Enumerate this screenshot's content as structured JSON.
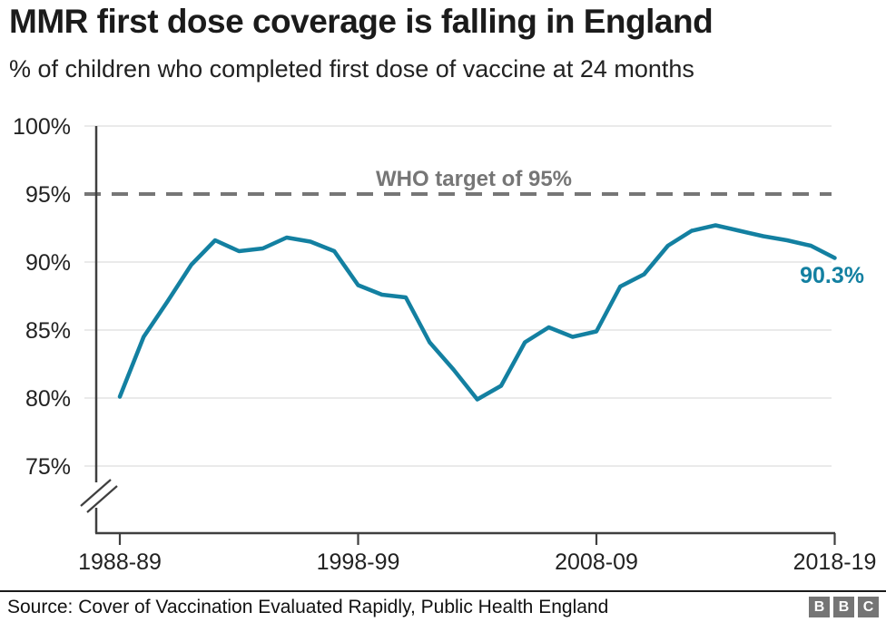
{
  "header": {
    "title": "MMR first dose coverage is falling in England",
    "subtitle": "% of children who completed first dose of vaccine at 24 months"
  },
  "chart_data": {
    "type": "line",
    "title": "MMR first dose coverage is falling in England",
    "subtitle": "% of children who completed first dose of vaccine at 24 months",
    "series_name": "MMR first dose coverage at 24 months (%)",
    "categories": [
      "1988-89",
      "1989-90",
      "1990-91",
      "1991-92",
      "1992-93",
      "1993-94",
      "1994-95",
      "1995-96",
      "1996-97",
      "1997-98",
      "1998-99",
      "1999-00",
      "2000-01",
      "2001-02",
      "2002-03",
      "2003-04",
      "2004-05",
      "2005-06",
      "2006-07",
      "2007-08",
      "2008-09",
      "2009-10",
      "2010-11",
      "2011-12",
      "2012-13",
      "2013-14",
      "2014-15",
      "2015-16",
      "2016-17",
      "2017-18",
      "2018-19"
    ],
    "values": [
      80.1,
      84.5,
      87.1,
      89.8,
      91.6,
      90.8,
      91.0,
      91.8,
      91.5,
      90.8,
      88.3,
      87.6,
      87.4,
      84.1,
      82.1,
      79.9,
      80.9,
      84.1,
      85.2,
      84.5,
      84.9,
      88.2,
      89.1,
      91.2,
      92.3,
      92.7,
      92.3,
      91.9,
      91.6,
      91.2,
      90.3
    ],
    "ylim": [
      75,
      100
    ],
    "axis_break": true,
    "grid": "horizontal",
    "y_tick_values": [
      100,
      95,
      90,
      85,
      80,
      75
    ],
    "y_tick_labels": [
      "100%",
      "95%",
      "90%",
      "85%",
      "80%",
      "75%"
    ],
    "x_tick_indices": [
      0,
      10,
      20,
      30
    ],
    "x_tick_labels": [
      "1988-89",
      "1998-99",
      "2008-09",
      "2018-19"
    ],
    "target": {
      "value": 95,
      "label": "WHO target of 95%"
    },
    "end_label": "90.3%",
    "colors": {
      "line": "#1380A1",
      "target": "#767676",
      "grid": "#e4e4e4",
      "axis": "#3f3f3f"
    }
  },
  "footer": {
    "source": "Source: Cover of Vaccination Evaluated Rapidly, Public Health England",
    "logo_letters": [
      "B",
      "B",
      "C"
    ]
  }
}
